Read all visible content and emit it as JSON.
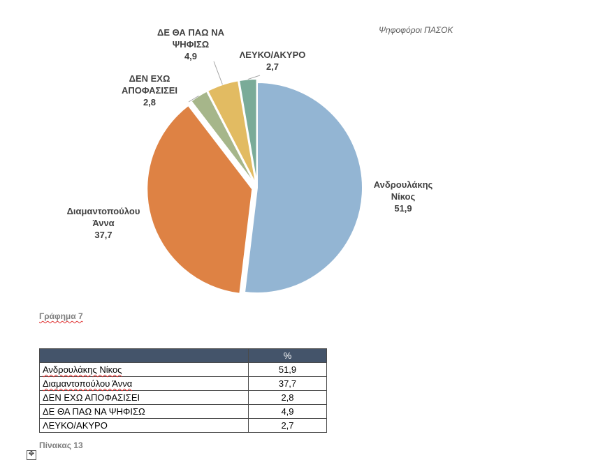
{
  "chart_data": {
    "type": "pie",
    "subtitle": "Ψηφοφόροι ΠΑΣΟΚ",
    "slices": [
      {
        "label_lines": [
          "Ανδρουλάκης",
          "Νίκος"
        ],
        "value": 51.9,
        "value_label": "51,9",
        "color": "#93b5d3"
      },
      {
        "label_lines": [
          "Διαμαντοπούλου",
          "Άννα"
        ],
        "value": 37.7,
        "value_label": "37,7",
        "color": "#de8244"
      },
      {
        "label_lines": [
          "ΔΕΝ ΕΧΩ",
          "ΑΠΟΦΑΣΙΣΕΙ"
        ],
        "value": 2.8,
        "value_label": "2,8",
        "color": "#a6b68a"
      },
      {
        "label_lines": [
          "ΔΕ ΘΑ ΠΑΩ ΝΑ",
          "ΨΗΦΙΣΩ"
        ],
        "value": 4.9,
        "value_label": "4,9",
        "color": "#e2bb62"
      },
      {
        "label_lines": [
          "ΛΕΥΚΟ/ΑΚΥΡΟ"
        ],
        "value": 2.7,
        "value_label": "2,7",
        "color": "#7aab98"
      }
    ]
  },
  "captions": {
    "chart_caption": "Γράφημα 7",
    "table_caption": "Πίνακας 13"
  },
  "table": {
    "header": [
      "",
      "%"
    ],
    "rows": [
      {
        "name": "Ανδρουλάκης Νίκος",
        "value": "51,9"
      },
      {
        "name": "Διαμαντοπούλου Άννα",
        "value": "37,7"
      },
      {
        "name": "ΔΕΝ ΕΧΩ ΑΠΟΦΑΣΙΣΕΙ",
        "value": "2,8"
      },
      {
        "name": "ΔΕ ΘΑ ΠΑΩ ΝΑ ΨΗΦΙΣΩ",
        "value": "4,9"
      },
      {
        "name": "ΛΕΥΚΟ/ΑΚΥΡΟ",
        "value": "2,7"
      }
    ]
  },
  "icons": {
    "table_move_handle": "move-arrows-icon",
    "table_move_glyph": "✥"
  }
}
